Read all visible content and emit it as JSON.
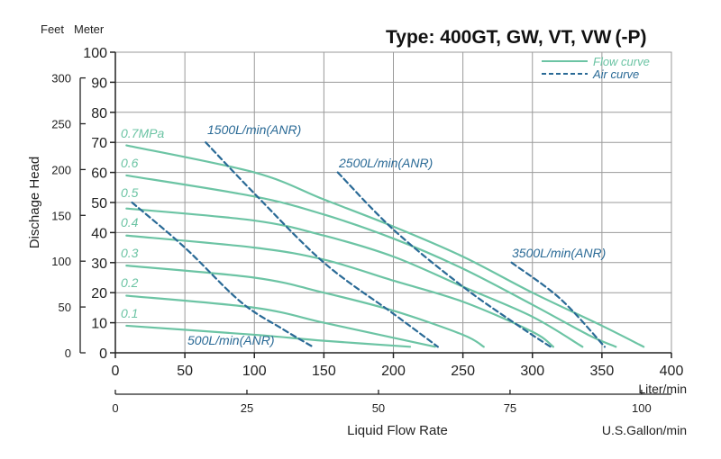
{
  "chart_data": {
    "type": "line",
    "title": "Type: 400GT, GW, VT, VW",
    "title_suffix": "(-P)",
    "xlabel": "Liquid Flow Rate",
    "ylabel": "Dischage Head",
    "x_unit_label": "Liter/min",
    "x2_unit_label": "U.S.Gallon/min",
    "y_unit_feet": "Feet",
    "y_unit_meter": "Meter",
    "xlim": [
      0,
      400
    ],
    "ylim": [
      0,
      100
    ],
    "x_ticks": [
      0,
      50,
      100,
      150,
      200,
      250,
      300,
      350,
      400
    ],
    "x_tick_labels": [
      "0",
      "50",
      "100",
      "150",
      "200",
      "250",
      "300",
      "350",
      "400"
    ],
    "y_ticks": [
      0,
      10,
      20,
      30,
      40,
      50,
      60,
      70,
      80,
      90,
      100
    ],
    "y_tick_labels": [
      "0",
      "10",
      "20",
      "30",
      "40",
      "50",
      "60",
      "70",
      "80",
      "90",
      "100"
    ],
    "feet_ticks": [
      0,
      50,
      100,
      150,
      200,
      250,
      300
    ],
    "feet_tick_labels": [
      "0",
      "50",
      "100",
      "150",
      "200",
      "250",
      "300"
    ],
    "gallon_ticks": [
      0,
      25,
      50,
      75,
      100
    ],
    "gallon_tick_labels": [
      "0",
      "25",
      "50",
      "75",
      "100"
    ],
    "grid": true,
    "legend_position": "top-right",
    "legend": [
      {
        "label": "Flow curve",
        "style": "solid"
      },
      {
        "label": "Air curve",
        "style": "dashed"
      }
    ],
    "colors": {
      "flow": "#6cc4a4",
      "air": "#2a6a96",
      "text": "#222222",
      "grid": "#9a9a9a"
    },
    "series": [
      {
        "name": "0.7MPa",
        "style": "solid",
        "points": [
          [
            8,
            69
          ],
          [
            100,
            60
          ],
          [
            150,
            51
          ],
          [
            200,
            42
          ],
          [
            250,
            32
          ],
          [
            300,
            20
          ],
          [
            350,
            9
          ],
          [
            380,
            2
          ]
        ]
      },
      {
        "name": "0.6",
        "style": "solid",
        "points": [
          [
            8,
            59
          ],
          [
            100,
            52
          ],
          [
            150,
            46
          ],
          [
            200,
            38
          ],
          [
            250,
            28
          ],
          [
            300,
            16
          ],
          [
            340,
            6
          ],
          [
            360,
            2
          ]
        ]
      },
      {
        "name": "0.5",
        "style": "solid",
        "points": [
          [
            8,
            48
          ],
          [
            100,
            44
          ],
          [
            150,
            39
          ],
          [
            200,
            32
          ],
          [
            250,
            22
          ],
          [
            300,
            12
          ],
          [
            336,
            2
          ]
        ]
      },
      {
        "name": "0.4",
        "style": "solid",
        "points": [
          [
            8,
            39
          ],
          [
            100,
            35
          ],
          [
            150,
            31
          ],
          [
            200,
            24
          ],
          [
            250,
            17
          ],
          [
            300,
            7
          ],
          [
            315,
            2
          ]
        ]
      },
      {
        "name": "0.3",
        "style": "solid",
        "points": [
          [
            8,
            29
          ],
          [
            100,
            25
          ],
          [
            150,
            20
          ],
          [
            200,
            14
          ],
          [
            250,
            6
          ],
          [
            265,
            2
          ]
        ]
      },
      {
        "name": "0.2",
        "style": "solid",
        "points": [
          [
            8,
            19
          ],
          [
            100,
            15
          ],
          [
            150,
            10
          ],
          [
            200,
            5
          ],
          [
            230,
            2
          ]
        ]
      },
      {
        "name": "0.1",
        "style": "solid",
        "points": [
          [
            8,
            9
          ],
          [
            100,
            6
          ],
          [
            150,
            4
          ],
          [
            212,
            2
          ]
        ]
      },
      {
        "name": "500L/min(ANR)",
        "style": "dashed",
        "points": [
          [
            12,
            50
          ],
          [
            50,
            35
          ],
          [
            90,
            17
          ],
          [
            120,
            8
          ],
          [
            142,
            2
          ]
        ]
      },
      {
        "name": "1500L/min(ANR)",
        "style": "dashed",
        "points": [
          [
            65,
            70
          ],
          [
            100,
            53
          ],
          [
            150,
            30
          ],
          [
            200,
            13
          ],
          [
            232,
            2
          ]
        ]
      },
      {
        "name": "2500L/min(ANR)",
        "style": "dashed",
        "points": [
          [
            160,
            60
          ],
          [
            200,
            41
          ],
          [
            250,
            22
          ],
          [
            290,
            9
          ],
          [
            313,
            2
          ]
        ]
      },
      {
        "name": "3500L/min(ANR)",
        "style": "dashed",
        "points": [
          [
            285,
            30
          ],
          [
            320,
            18
          ],
          [
            352,
            2
          ]
        ]
      }
    ]
  }
}
